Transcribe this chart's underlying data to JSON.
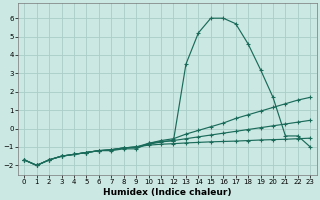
{
  "xlabel": "Humidex (Indice chaleur)",
  "ylabel": "",
  "bg_color": "#cce8e3",
  "grid_color": "#aacdc7",
  "line_color": "#1a6b5a",
  "xlim": [
    -0.5,
    23.5
  ],
  "ylim": [
    -2.5,
    6.8
  ],
  "yticks": [
    -2,
    -1,
    0,
    1,
    2,
    3,
    4,
    5,
    6
  ],
  "xticks": [
    0,
    1,
    2,
    3,
    4,
    5,
    6,
    7,
    8,
    9,
    10,
    11,
    12,
    13,
    14,
    15,
    16,
    17,
    18,
    19,
    20,
    21,
    22,
    23
  ],
  "series": [
    {
      "x": [
        0,
        1,
        2,
        3,
        4,
        5,
        6,
        7,
        8,
        9,
        10,
        11,
        12,
        13,
        14,
        15,
        16,
        17,
        18,
        19,
        20,
        21,
        22,
        23
      ],
      "y": [
        -1.7,
        -2.0,
        -1.7,
        -1.5,
        -1.4,
        -1.3,
        -1.2,
        -1.2,
        -1.1,
        -1.1,
        -0.8,
        -0.7,
        -0.65,
        3.5,
        5.2,
        6.0,
        6.0,
        5.7,
        4.6,
        3.2,
        1.7,
        -0.4,
        -0.4,
        -1.0
      ]
    },
    {
      "x": [
        0,
        1,
        2,
        3,
        4,
        5,
        6,
        7,
        8,
        9,
        10,
        11,
        12,
        13,
        14,
        15,
        16,
        17,
        18,
        19,
        20,
        21,
        22,
        23
      ],
      "y": [
        -1.7,
        -2.0,
        -1.7,
        -1.5,
        -1.4,
        -1.3,
        -1.2,
        -1.15,
        -1.05,
        -1.0,
        -0.8,
        -0.65,
        -0.55,
        -0.3,
        -0.1,
        0.1,
        0.3,
        0.55,
        0.75,
        0.95,
        1.15,
        1.35,
        1.55,
        1.7
      ]
    },
    {
      "x": [
        0,
        1,
        2,
        3,
        4,
        5,
        6,
        7,
        8,
        9,
        10,
        11,
        12,
        13,
        14,
        15,
        16,
        17,
        18,
        19,
        20,
        21,
        22,
        23
      ],
      "y": [
        -1.7,
        -2.0,
        -1.7,
        -1.5,
        -1.4,
        -1.3,
        -1.2,
        -1.15,
        -1.05,
        -1.0,
        -0.85,
        -0.73,
        -0.65,
        -0.55,
        -0.45,
        -0.35,
        -0.25,
        -0.15,
        -0.05,
        0.05,
        0.15,
        0.25,
        0.35,
        0.45
      ]
    },
    {
      "x": [
        0,
        1,
        2,
        3,
        4,
        5,
        6,
        7,
        8,
        9,
        10,
        11,
        12,
        13,
        14,
        15,
        16,
        17,
        18,
        19,
        20,
        21,
        22,
        23
      ],
      "y": [
        -1.7,
        -2.0,
        -1.7,
        -1.5,
        -1.4,
        -1.3,
        -1.2,
        -1.15,
        -1.05,
        -1.0,
        -0.9,
        -0.85,
        -0.82,
        -0.78,
        -0.75,
        -0.72,
        -0.7,
        -0.68,
        -0.65,
        -0.62,
        -0.6,
        -0.58,
        -0.55,
        -0.52
      ]
    }
  ]
}
